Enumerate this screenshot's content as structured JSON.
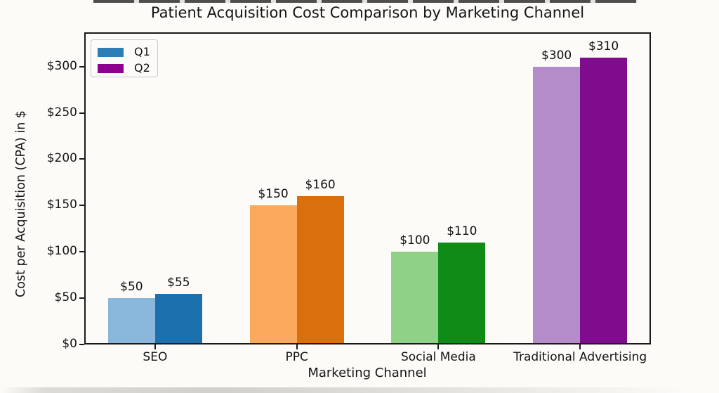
{
  "chart_data": {
    "type": "bar",
    "title": "Patient Acquisition Cost Comparison by Marketing Channel",
    "xlabel": "Marketing Channel",
    "ylabel": "Cost per Acquisition (CPA) in $",
    "categories": [
      "SEO",
      "PPC",
      "Social Media",
      "Traditional Advertising"
    ],
    "series": [
      {
        "name": "Q1",
        "values": [
          50,
          150,
          100,
          300
        ],
        "value_labels": [
          "$50",
          "$150",
          "$100",
          "$300"
        ],
        "colors": [
          "#8ab7dc",
          "#fbaa5d",
          "#8ed187",
          "#b48cc9"
        ]
      },
      {
        "name": "Q2",
        "values": [
          55,
          160,
          110,
          310
        ],
        "value_labels": [
          "$55",
          "$160",
          "$110",
          "$310"
        ],
        "colors": [
          "#1b70ae",
          "#d9700c",
          "#0f8c17",
          "#7f0c8c"
        ]
      }
    ],
    "legend": {
      "position": "upper-left",
      "items": [
        {
          "label": "Q1",
          "color": "#2d7db7"
        },
        {
          "label": "Q2",
          "color": "#8d008d"
        }
      ]
    },
    "y_ticks": [
      {
        "value": 0,
        "label": "$0"
      },
      {
        "value": 50,
        "label": "$50"
      },
      {
        "value": 100,
        "label": "$100"
      },
      {
        "value": 150,
        "label": "$150"
      },
      {
        "value": 200,
        "label": "$200"
      },
      {
        "value": 250,
        "label": "$250"
      },
      {
        "value": 300,
        "label": "$300"
      }
    ],
    "ylim": [
      0,
      337
    ],
    "grid": false,
    "background": "#fcfbf8",
    "frame_color": "#1a1a1a"
  }
}
